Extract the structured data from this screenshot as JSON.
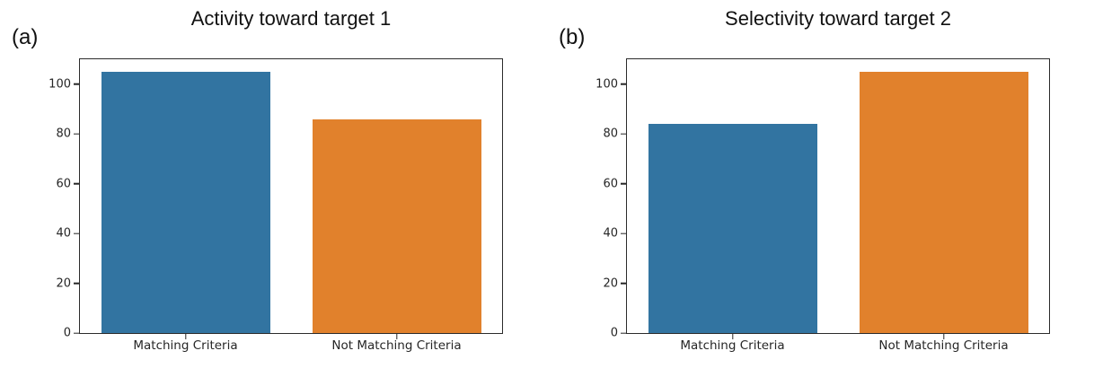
{
  "figure": {
    "background": "#ffffff",
    "axis_color": "#2b2b2b",
    "text_color": "#262626"
  },
  "chart_data": [
    {
      "type": "bar",
      "panel_label": "(a)",
      "title": "Activity toward target 1",
      "categories": [
        "Matching Criteria",
        "Not Matching Criteria"
      ],
      "values": [
        105,
        86
      ],
      "bar_colors": [
        "#3274a1",
        "#e1812c"
      ],
      "yticks": [
        0,
        20,
        40,
        60,
        80,
        100
      ],
      "ylim": [
        0,
        110
      ],
      "xlabel": "",
      "ylabel": "",
      "grid": false,
      "legend": null
    },
    {
      "type": "bar",
      "panel_label": "(b)",
      "title": "Selectivity toward target 2",
      "categories": [
        "Matching Criteria",
        "Not Matching Criteria"
      ],
      "values": [
        84,
        105
      ],
      "bar_colors": [
        "#3274a1",
        "#e1812c"
      ],
      "yticks": [
        0,
        20,
        40,
        60,
        80,
        100
      ],
      "ylim": [
        0,
        110
      ],
      "xlabel": "",
      "ylabel": "",
      "grid": false,
      "legend": null
    }
  ]
}
